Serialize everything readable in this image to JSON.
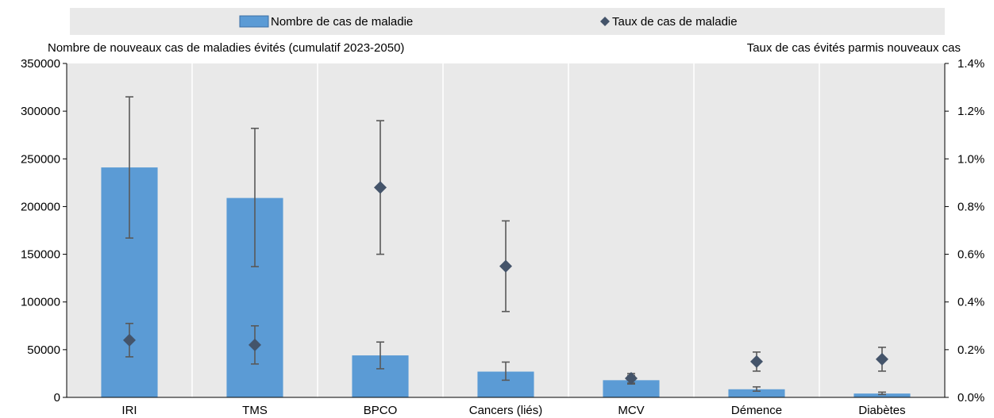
{
  "chart_data": {
    "type": "bar",
    "categories": [
      "IRI",
      "TMS",
      "BPCO",
      "Cancers (liés)",
      "MCV",
      "Démence",
      "Diabètes"
    ],
    "series": [
      {
        "name": "Nombre de cas de maladie",
        "axis": "left",
        "kind": "bar",
        "values": [
          241000,
          209000,
          44000,
          27000,
          18000,
          8500,
          4000
        ],
        "error_low": [
          167000,
          137000,
          30000,
          18000,
          14000,
          6500,
          3000
        ],
        "error_high": [
          315000,
          282000,
          58000,
          37000,
          23000,
          11000,
          5500
        ],
        "color": "#5b9bd5"
      },
      {
        "name": "Taux de cas de maladie",
        "axis": "right",
        "kind": "marker",
        "marker": "diamond",
        "values": [
          0.24,
          0.22,
          0.88,
          0.55,
          0.08,
          0.15,
          0.16
        ],
        "error_low": [
          0.17,
          0.14,
          0.6,
          0.36,
          0.06,
          0.11,
          0.11
        ],
        "error_high": [
          0.31,
          0.3,
          1.16,
          0.74,
          0.1,
          0.19,
          0.21
        ],
        "color": "#44546a"
      }
    ],
    "left_axis": {
      "label": "Nombre de nouveaux cas de maladies évités (cumulatif 2023-2050)",
      "ylim": [
        0,
        350000
      ],
      "ticks": [
        0,
        50000,
        100000,
        150000,
        200000,
        250000,
        300000,
        350000
      ],
      "tick_labels": [
        "0",
        "50000",
        "100000",
        "150000",
        "200000",
        "250000",
        "300000",
        "350000"
      ]
    },
    "right_axis": {
      "label": "Taux de cas évités parmis nouveaux cas",
      "ylim": [
        0,
        1.4
      ],
      "ticks": [
        0,
        0.2,
        0.4,
        0.6,
        0.8,
        1.0,
        1.2,
        1.4
      ],
      "tick_labels": [
        "0.0%",
        "0.2%",
        "0.4%",
        "0.6%",
        "0.8%",
        "1.0%",
        "1.2%",
        "1.4%"
      ]
    },
    "grid": "vertical",
    "legend_position": "top",
    "error_bar_color": "#595959",
    "plot_background": "#e9e9e9"
  }
}
